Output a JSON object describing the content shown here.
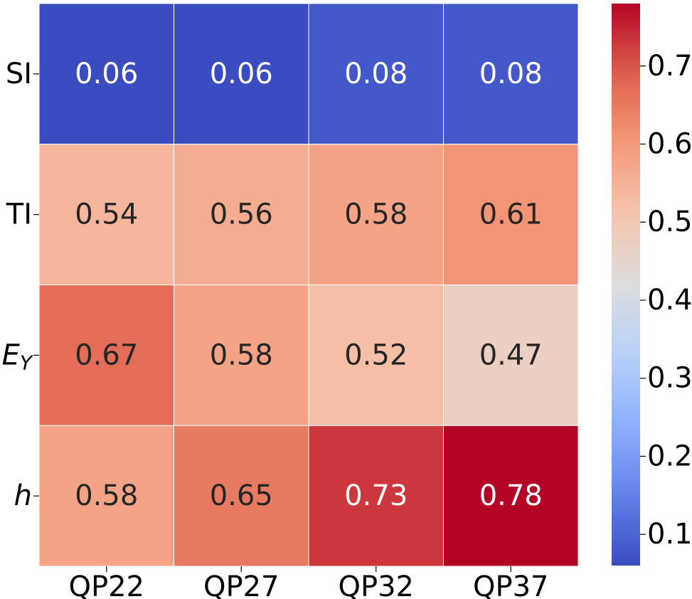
{
  "chart_data": {
    "type": "heatmap",
    "title": "",
    "xlabel": "",
    "ylabel": "",
    "x_categories": [
      "QP22",
      "QP27",
      "QP32",
      "QP37"
    ],
    "y_categories": [
      {
        "main": "SI",
        "sub": "",
        "italic": false
      },
      {
        "main": "TI",
        "sub": "",
        "italic": false
      },
      {
        "main": "E",
        "sub": "Y",
        "italic": true
      },
      {
        "main": "h",
        "sub": "",
        "italic": true
      }
    ],
    "values": [
      [
        0.06,
        0.06,
        0.08,
        0.08
      ],
      [
        0.54,
        0.56,
        0.58,
        0.61
      ],
      [
        0.67,
        0.58,
        0.52,
        0.47
      ],
      [
        0.58,
        0.65,
        0.73,
        0.78
      ]
    ],
    "cell_labels": [
      [
        "0.06",
        "0.06",
        "0.08",
        "0.08"
      ],
      [
        "0.54",
        "0.56",
        "0.58",
        "0.61"
      ],
      [
        "0.67",
        "0.58",
        "0.52",
        "0.47"
      ],
      [
        "0.58",
        "0.65",
        "0.73",
        "0.78"
      ]
    ],
    "colormap": "coolwarm",
    "vmin": 0.06,
    "vmax": 0.78,
    "colorbar_ticks": [
      0.1,
      0.2,
      0.3,
      0.4,
      0.5,
      0.6,
      0.7
    ],
    "colorbar_tick_labels": [
      "0.1",
      "0.2",
      "0.3",
      "0.4",
      "0.5",
      "0.6",
      "0.7"
    ],
    "colorbar_position": "right",
    "annotation_colors": {
      "light": "#ffffff",
      "dark": "#262626"
    },
    "cell_border_color": "#ffffff"
  }
}
